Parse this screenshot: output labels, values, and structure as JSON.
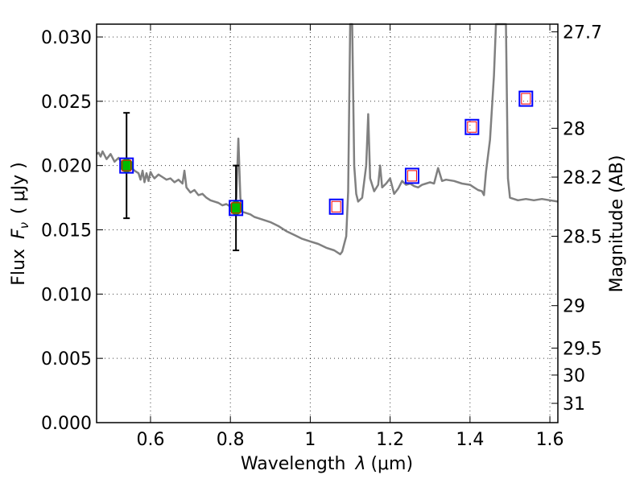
{
  "chart_data": {
    "type": "scatter",
    "xlabel_prefix": "Wavelength",
    "xlabel_symbol": "λ",
    "xlabel_unit": "(μm)",
    "ylabel_prefix": "Flux",
    "ylabel_symbol": "F",
    "ylabel_subscript": "ν",
    "ylabel_unit": "( μJy )",
    "y2label": "Magnitude (AB)",
    "xlim": [
      0.465,
      1.62
    ],
    "ylim": [
      0.0,
      0.031
    ],
    "grid": true,
    "x_ticks": [
      {
        "value": 0.6,
        "label": "0.6"
      },
      {
        "value": 0.8,
        "label": "0.8"
      },
      {
        "value": 1.0,
        "label": "1"
      },
      {
        "value": 1.2,
        "label": "1.2"
      },
      {
        "value": 1.4,
        "label": "1.4"
      },
      {
        "value": 1.6,
        "label": "1.6"
      }
    ],
    "y_ticks": [
      {
        "value": 0.0,
        "label": "0.000"
      },
      {
        "value": 0.005,
        "label": "0.005"
      },
      {
        "value": 0.01,
        "label": "0.010"
      },
      {
        "value": 0.015,
        "label": "0.015"
      },
      {
        "value": 0.02,
        "label": "0.020"
      },
      {
        "value": 0.025,
        "label": "0.025"
      },
      {
        "value": 0.03,
        "label": "0.030"
      }
    ],
    "mag_ticks": [
      {
        "label": "27.7",
        "flux": 0.0304
      },
      {
        "label": "28",
        "flux": 0.0229
      },
      {
        "label": "28.2",
        "flux": 0.0191
      },
      {
        "label": "28.5",
        "flux": 0.0145
      },
      {
        "label": "29",
        "flux": 0.0091
      },
      {
        "label": "29.5",
        "flux": 0.0058
      },
      {
        "label": "30",
        "flux": 0.0037
      },
      {
        "label": "31",
        "flux": 0.0015
      }
    ],
    "observed": [
      {
        "x": 0.54,
        "y": 0.02,
        "err_low": 0.0159,
        "err_high": 0.0241
      },
      {
        "x": 0.814,
        "y": 0.0167,
        "err_low": 0.0134,
        "err_high": 0.02
      }
    ],
    "model_boxes": [
      {
        "x": 0.54,
        "y": 0.02
      },
      {
        "x": 0.814,
        "y": 0.0167
      },
      {
        "x": 1.065,
        "y": 0.0168
      },
      {
        "x": 1.255,
        "y": 0.0192
      },
      {
        "x": 1.405,
        "y": 0.023
      },
      {
        "x": 1.54,
        "y": 0.0252
      }
    ],
    "spectrum": [
      [
        0.465,
        0.0209
      ],
      [
        0.47,
        0.021
      ],
      [
        0.475,
        0.0207
      ],
      [
        0.48,
        0.0211
      ],
      [
        0.49,
        0.0205
      ],
      [
        0.5,
        0.0209
      ],
      [
        0.51,
        0.0203
      ],
      [
        0.52,
        0.0206
      ],
      [
        0.53,
        0.0201
      ],
      [
        0.54,
        0.0204
      ],
      [
        0.55,
        0.0199
      ],
      [
        0.56,
        0.0196
      ],
      [
        0.57,
        0.0194
      ],
      [
        0.575,
        0.0189
      ],
      [
        0.58,
        0.0196
      ],
      [
        0.585,
        0.0187
      ],
      [
        0.59,
        0.0194
      ],
      [
        0.595,
        0.0188
      ],
      [
        0.6,
        0.0195
      ],
      [
        0.605,
        0.0192
      ],
      [
        0.61,
        0.019
      ],
      [
        0.62,
        0.0193
      ],
      [
        0.63,
        0.0191
      ],
      [
        0.64,
        0.0189
      ],
      [
        0.65,
        0.019
      ],
      [
        0.66,
        0.0187
      ],
      [
        0.67,
        0.0189
      ],
      [
        0.68,
        0.0186
      ],
      [
        0.685,
        0.0196
      ],
      [
        0.69,
        0.0183
      ],
      [
        0.7,
        0.0179
      ],
      [
        0.71,
        0.0181
      ],
      [
        0.72,
        0.0177
      ],
      [
        0.73,
        0.0178
      ],
      [
        0.74,
        0.0175
      ],
      [
        0.75,
        0.0173
      ],
      [
        0.76,
        0.0172
      ],
      [
        0.77,
        0.0171
      ],
      [
        0.78,
        0.0169
      ],
      [
        0.79,
        0.017
      ],
      [
        0.8,
        0.0168
      ],
      [
        0.81,
        0.0167
      ],
      [
        0.815,
        0.0175
      ],
      [
        0.82,
        0.0221
      ],
      [
        0.825,
        0.0175
      ],
      [
        0.83,
        0.0164
      ],
      [
        0.84,
        0.0163
      ],
      [
        0.85,
        0.0162
      ],
      [
        0.86,
        0.016
      ],
      [
        0.87,
        0.0159
      ],
      [
        0.88,
        0.0158
      ],
      [
        0.9,
        0.0156
      ],
      [
        0.92,
        0.0153
      ],
      [
        0.94,
        0.0149
      ],
      [
        0.96,
        0.0146
      ],
      [
        0.98,
        0.0143
      ],
      [
        1.0,
        0.0141
      ],
      [
        1.02,
        0.0139
      ],
      [
        1.04,
        0.0136
      ],
      [
        1.06,
        0.0134
      ],
      [
        1.075,
        0.0131
      ],
      [
        1.08,
        0.0133
      ],
      [
        1.09,
        0.0145
      ],
      [
        1.095,
        0.018
      ],
      [
        1.1,
        0.032
      ],
      [
        1.105,
        0.032
      ],
      [
        1.11,
        0.02
      ],
      [
        1.115,
        0.0178
      ],
      [
        1.12,
        0.0172
      ],
      [
        1.13,
        0.0175
      ],
      [
        1.14,
        0.02
      ],
      [
        1.145,
        0.024
      ],
      [
        1.15,
        0.019
      ],
      [
        1.16,
        0.018
      ],
      [
        1.17,
        0.0185
      ],
      [
        1.175,
        0.02
      ],
      [
        1.18,
        0.0183
      ],
      [
        1.19,
        0.0186
      ],
      [
        1.2,
        0.019
      ],
      [
        1.21,
        0.0178
      ],
      [
        1.22,
        0.0182
      ],
      [
        1.23,
        0.0188
      ],
      [
        1.24,
        0.0185
      ],
      [
        1.25,
        0.0186
      ],
      [
        1.26,
        0.0184
      ],
      [
        1.27,
        0.0183
      ],
      [
        1.28,
        0.0185
      ],
      [
        1.29,
        0.0186
      ],
      [
        1.3,
        0.0187
      ],
      [
        1.31,
        0.0186
      ],
      [
        1.32,
        0.0198
      ],
      [
        1.33,
        0.0188
      ],
      [
        1.34,
        0.0189
      ],
      [
        1.36,
        0.0188
      ],
      [
        1.38,
        0.0186
      ],
      [
        1.4,
        0.0185
      ],
      [
        1.41,
        0.0183
      ],
      [
        1.42,
        0.0181
      ],
      [
        1.43,
        0.018
      ],
      [
        1.435,
        0.0177
      ],
      [
        1.44,
        0.0195
      ],
      [
        1.45,
        0.022
      ],
      [
        1.46,
        0.027
      ],
      [
        1.465,
        0.032
      ],
      [
        1.49,
        0.032
      ],
      [
        1.495,
        0.019
      ],
      [
        1.5,
        0.0175
      ],
      [
        1.52,
        0.0173
      ],
      [
        1.54,
        0.0174
      ],
      [
        1.56,
        0.0173
      ],
      [
        1.58,
        0.0174
      ],
      [
        1.6,
        0.0173
      ],
      [
        1.62,
        0.0172
      ]
    ]
  }
}
